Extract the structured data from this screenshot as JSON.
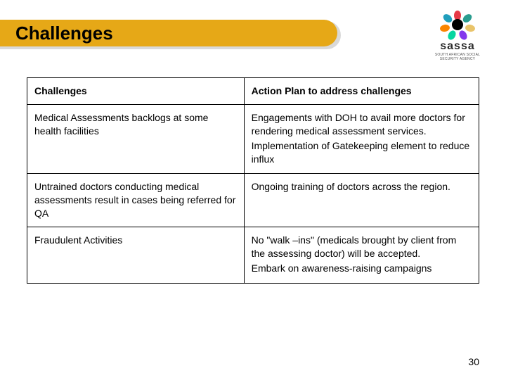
{
  "slide": {
    "title": "Challenges",
    "page_number": "30",
    "banner_color": "#e6a817",
    "background_color": "#ffffff"
  },
  "logo": {
    "text": "sassa",
    "subtext": "SOUTH AFRICAN SOCIAL SECURITY AGENCY"
  },
  "table": {
    "headers": {
      "col1": "Challenges",
      "col2": "Action Plan to address challenges"
    },
    "rows": [
      {
        "challenge": "Medical Assessments backlogs at some health facilities",
        "action_p1": "Engagements with DOH to avail more doctors for rendering medical assessment services.",
        "action_p2": "Implementation of Gatekeeping element to reduce influx"
      },
      {
        "challenge": "Untrained doctors conducting medical assessments result in cases being referred for QA",
        "action_p1": "Ongoing training of doctors across the region.",
        "action_p2": ""
      },
      {
        "challenge": "Fraudulent Activities",
        "action_p1": "No \"walk –ins\" (medicals brought by client from the assessing doctor) will be accepted.",
        "action_p2": "Embark on awareness-raising campaigns"
      }
    ]
  }
}
